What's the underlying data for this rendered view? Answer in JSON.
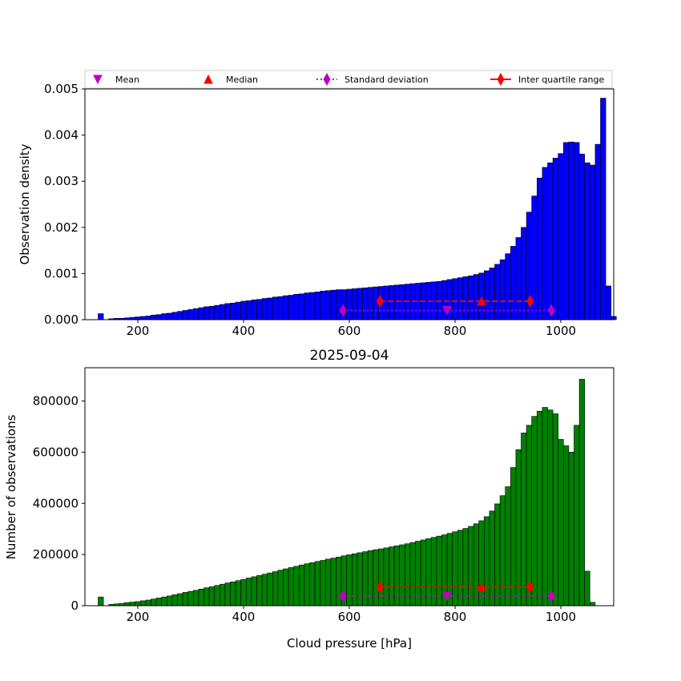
{
  "legend": {
    "placement": "top",
    "entries": [
      {
        "label": "Mean",
        "marker": "triangle-down",
        "color": "#bf00bf",
        "line": "none"
      },
      {
        "label": "Median",
        "marker": "triangle-up",
        "color": "#ff0000",
        "line": "none"
      },
      {
        "label": "Standard deviation",
        "marker": "diamond",
        "color": "#bf00bf",
        "line": "dotted"
      },
      {
        "label": "Inter quartile range",
        "marker": "diamond",
        "color": "#ff0000",
        "line": "solid"
      }
    ]
  },
  "chart_data": [
    {
      "type": "bar",
      "title": "",
      "xlabel": "",
      "ylabel": "Observation density",
      "xlim": [
        100,
        1100
      ],
      "ylim": [
        0,
        0.005
      ],
      "xticks": [
        200,
        400,
        600,
        800,
        1000
      ],
      "yticks": [
        0.0,
        0.001,
        0.002,
        0.003,
        0.004,
        0.005
      ],
      "ytick_labels": [
        "0.000",
        "0.001",
        "0.002",
        "0.003",
        "0.004",
        "0.005"
      ],
      "bar_color": "#0000ff",
      "edge_color": "#000000",
      "bin_width": 10,
      "bin_start": 130,
      "values": [
        0.00013,
        0.0,
        2e-05,
        3e-05,
        3e-05,
        4e-05,
        5e-05,
        6e-05,
        7e-05,
        8e-05,
        0.0001,
        0.00011,
        0.00013,
        0.00014,
        0.00016,
        0.00018,
        0.0002,
        0.00022,
        0.00024,
        0.00026,
        0.00028,
        0.00029,
        0.00031,
        0.00033,
        0.00035,
        0.00036,
        0.00038,
        0.0004,
        0.00041,
        0.00043,
        0.00044,
        0.00046,
        0.00047,
        0.00049,
        0.0005,
        0.00052,
        0.00053,
        0.00055,
        0.00056,
        0.00058,
        0.00059,
        0.0006,
        0.00062,
        0.00063,
        0.00064,
        0.00065,
        0.00065,
        0.00066,
        0.00067,
        0.00068,
        0.00069,
        0.0007,
        0.00071,
        0.00072,
        0.00073,
        0.00074,
        0.00075,
        0.00076,
        0.00077,
        0.00078,
        0.00079,
        0.0008,
        0.00081,
        0.00082,
        0.00083,
        0.00085,
        0.00087,
        0.00089,
        0.00091,
        0.00093,
        0.00095,
        0.00098,
        0.00101,
        0.00106,
        0.00112,
        0.0012,
        0.0013,
        0.00143,
        0.00159,
        0.00178,
        0.002,
        0.00233,
        0.00268,
        0.00307,
        0.0033,
        0.0034,
        0.0035,
        0.0036,
        0.00384,
        0.00385,
        0.00384,
        0.00359,
        0.0034,
        0.00335,
        0.0038,
        0.0048,
        0.00073,
        7e-05
      ],
      "stats": {
        "mean": {
          "x": 785,
          "y": 0.0002
        },
        "median": {
          "x": 850,
          "y": 0.0004
        },
        "std_range": {
          "x": [
            588,
            982
          ],
          "y": 0.0002
        },
        "iqr": {
          "x": [
            658,
            942
          ],
          "y": 0.0004
        }
      }
    },
    {
      "type": "bar",
      "title": "2025-09-04",
      "xlabel": "Cloud pressure [hPa]",
      "ylabel": "Number of observations",
      "xlim": [
        100,
        1100
      ],
      "ylim": [
        0,
        930000
      ],
      "xticks": [
        200,
        400,
        600,
        800,
        1000
      ],
      "yticks": [
        0,
        200000,
        400000,
        600000,
        800000
      ],
      "ytick_labels": [
        "0",
        "200000",
        "400000",
        "600000",
        "800000"
      ],
      "bar_color": "#008000",
      "edge_color": "#000000",
      "bin_width": 10,
      "bin_start": 130,
      "values": [
        34000,
        0,
        5000,
        7000,
        9000,
        12000,
        14000,
        16000,
        19000,
        22000,
        26000,
        30000,
        34000,
        38000,
        43000,
        47000,
        52000,
        56000,
        60000,
        65000,
        70000,
        74000,
        79000,
        84000,
        89000,
        93000,
        98000,
        103000,
        108000,
        113000,
        118000,
        123000,
        128000,
        133000,
        139000,
        144000,
        149000,
        154000,
        159000,
        164000,
        168000,
        173000,
        177000,
        182000,
        186000,
        190000,
        195000,
        199000,
        203000,
        207000,
        211000,
        215000,
        219000,
        222000,
        226000,
        230000,
        234000,
        238000,
        242000,
        247000,
        252000,
        257000,
        262000,
        267000,
        272000,
        277000,
        283000,
        289000,
        295000,
        302000,
        310000,
        320000,
        332000,
        348000,
        370000,
        398000,
        430000,
        465000,
        540000,
        610000,
        675000,
        705000,
        740000,
        760000,
        775000,
        765000,
        750000,
        650000,
        625000,
        600000,
        705000,
        885000,
        135000,
        13000
      ],
      "stats": {
        "mean": {
          "x": 785,
          "y": 37000
        },
        "median": {
          "x": 850,
          "y": 72000
        },
        "std_range": {
          "x": [
            588,
            982
          ],
          "y": 37000
        },
        "iqr": {
          "x": [
            658,
            942
          ],
          "y": 72000
        }
      }
    }
  ]
}
